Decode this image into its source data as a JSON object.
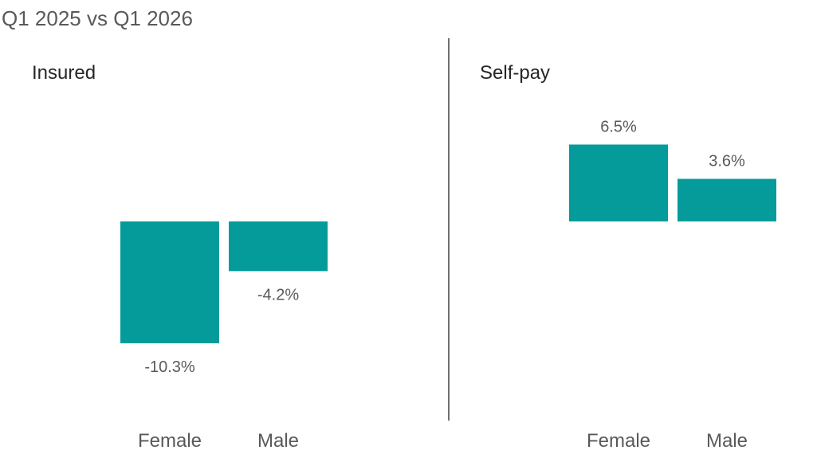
{
  "chart_data": {
    "type": "bar",
    "title": "Q1 2025 vs Q1 2026",
    "categories": [
      "Female",
      "Male"
    ],
    "bar_color": "#069B9B",
    "divider_color": "#404040",
    "legend": "none",
    "grid": false,
    "ylim": [
      -13.5,
      11.5
    ],
    "panels": [
      {
        "name": "Insured",
        "values": [
          -10.3,
          -4.2
        ],
        "labels": [
          "-10.3%",
          "-4.2%"
        ]
      },
      {
        "name": "Self-pay",
        "values": [
          6.5,
          3.6
        ],
        "labels": [
          "6.5%",
          "3.6%"
        ]
      }
    ]
  }
}
